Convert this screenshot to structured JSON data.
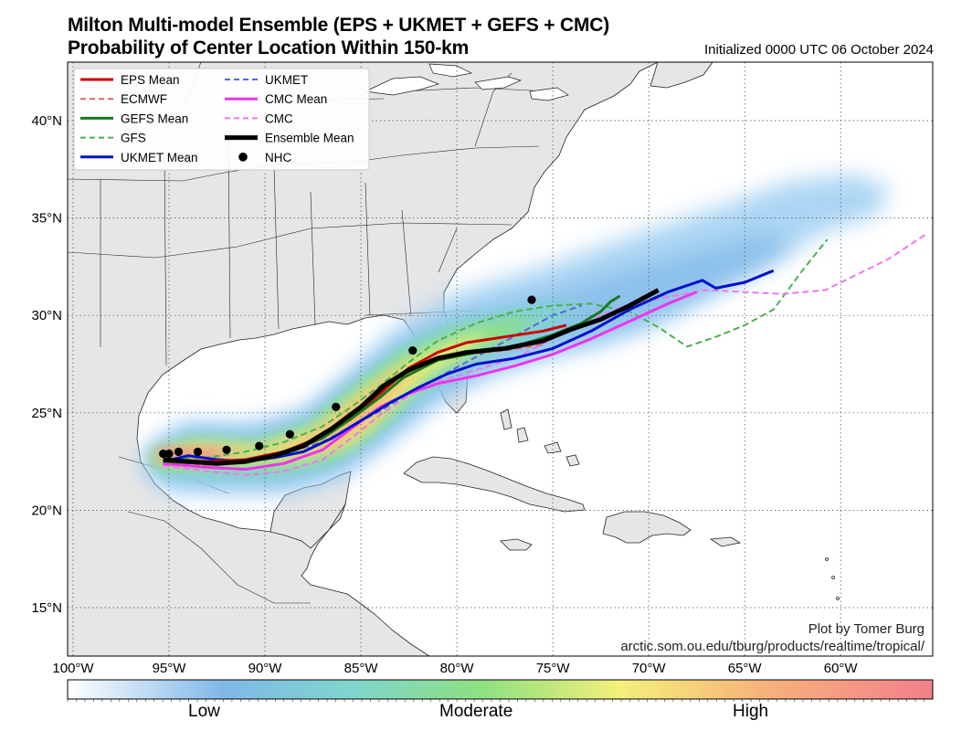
{
  "title_line1": "Milton Multi-model Ensemble (EPS + UKMET + GEFS + CMC)",
  "title_line2": "Probability of Center Location Within 150-km",
  "initialized": "Initialized 0000 UTC 06 October 2024",
  "credit_line1": "Plot by Tomer Burg",
  "credit_line2": "arctic.som.ou.edu/tburg/products/realtime/tropical/",
  "lat_ticks": [
    {
      "value": 40,
      "label": "40°N"
    },
    {
      "value": 35,
      "label": "35°N"
    },
    {
      "value": 30,
      "label": "30°N"
    },
    {
      "value": 25,
      "label": "25°N"
    },
    {
      "value": 20,
      "label": "20°N"
    },
    {
      "value": 15,
      "label": "15°N"
    }
  ],
  "lon_ticks": [
    {
      "value": -100,
      "label": "100°W"
    },
    {
      "value": -95,
      "label": "95°W"
    },
    {
      "value": -90,
      "label": "90°W"
    },
    {
      "value": -85,
      "label": "85°W"
    },
    {
      "value": -80,
      "label": "80°W"
    },
    {
      "value": -75,
      "label": "75°W"
    },
    {
      "value": -70,
      "label": "70°W"
    },
    {
      "value": -65,
      "label": "65°W"
    },
    {
      "value": -60,
      "label": "60°W"
    }
  ],
  "legend": [
    {
      "label": "EPS Mean",
      "color": "#cc0000",
      "style": "solid"
    },
    {
      "label": "ECMWF",
      "color": "#e06666",
      "style": "dashed"
    },
    {
      "label": "GEFS Mean",
      "color": "#1a7a1a",
      "style": "solid"
    },
    {
      "label": "GFS",
      "color": "#4caf50",
      "style": "dashed"
    },
    {
      "label": "UKMET Mean",
      "color": "#0010cc",
      "style": "solid"
    },
    {
      "label": "UKMET",
      "color": "#5a64e0",
      "style": "dashed"
    },
    {
      "label": "CMC Mean",
      "color": "#ee33ee",
      "style": "solid"
    },
    {
      "label": "CMC",
      "color": "#ee77ee",
      "style": "dashed"
    },
    {
      "label": "Ensemble Mean",
      "color": "#000000",
      "style": "solid"
    },
    {
      "label": "NHC",
      "color": "#000000",
      "style": "dot"
    }
  ],
  "colorbar": {
    "low": "Low",
    "moderate": "Moderate",
    "high": "High"
  },
  "tracks": {
    "ensemble_mean": [
      [
        -95.3,
        22.6
      ],
      [
        -94,
        22.5
      ],
      [
        -92.5,
        22.4
      ],
      [
        -91,
        22.5
      ],
      [
        -89.5,
        22.8
      ],
      [
        -88,
        23.3
      ],
      [
        -86.5,
        24.2
      ],
      [
        -85,
        25.3
      ],
      [
        -83.8,
        26.4
      ],
      [
        -82.5,
        27.2
      ],
      [
        -81,
        27.8
      ],
      [
        -79.5,
        28.1
      ],
      [
        -77.5,
        28.3
      ],
      [
        -75.5,
        28.7
      ],
      [
        -74,
        29.3
      ],
      [
        -72.5,
        29.8
      ],
      [
        -71,
        30.5
      ],
      [
        -69.5,
        31.3
      ]
    ],
    "eps_mean": [
      [
        -95.3,
        22.6
      ],
      [
        -93,
        22.5
      ],
      [
        -91,
        22.6
      ],
      [
        -89,
        23
      ],
      [
        -87,
        23.8
      ],
      [
        -85.5,
        24.8
      ],
      [
        -84,
        26
      ],
      [
        -82.5,
        27.3
      ],
      [
        -81,
        28.1
      ],
      [
        -79.5,
        28.6
      ],
      [
        -77.5,
        28.9
      ],
      [
        -75.5,
        29.2
      ],
      [
        -74.3,
        29.5
      ]
    ],
    "gefs_mean": [
      [
        -95.3,
        22.5
      ],
      [
        -93,
        22.4
      ],
      [
        -91,
        22.5
      ],
      [
        -89,
        22.9
      ],
      [
        -87,
        23.7
      ],
      [
        -85.5,
        24.7
      ],
      [
        -84,
        25.8
      ],
      [
        -82.8,
        26.8
      ],
      [
        -81,
        27.7
      ],
      [
        -79,
        28.1
      ],
      [
        -77,
        28.4
      ],
      [
        -75,
        29
      ],
      [
        -73.5,
        29.6
      ],
      [
        -72.5,
        30.2
      ],
      [
        -72,
        30.7
      ],
      [
        -71.5,
        31
      ]
    ],
    "ukmet_mean": [
      [
        -95.3,
        22.5
      ],
      [
        -94,
        22.8
      ],
      [
        -92.5,
        22.6
      ],
      [
        -91,
        22.5
      ],
      [
        -89.5,
        22.7
      ],
      [
        -88,
        23
      ],
      [
        -86.5,
        23.7
      ],
      [
        -85,
        24.6
      ],
      [
        -83.5,
        25.5
      ],
      [
        -82,
        26.3
      ],
      [
        -80.5,
        27
      ],
      [
        -79,
        27.5
      ],
      [
        -77,
        27.8
      ],
      [
        -75,
        28.3
      ],
      [
        -73,
        29.2
      ],
      [
        -71,
        30.3
      ],
      [
        -69,
        31.2
      ],
      [
        -67.2,
        31.8
      ],
      [
        -66.5,
        31.4
      ],
      [
        -65,
        31.7
      ],
      [
        -63.5,
        32.3
      ]
    ],
    "cmc_mean": [
      [
        -95.3,
        22.4
      ],
      [
        -93,
        22.2
      ],
      [
        -91,
        22.1
      ],
      [
        -89,
        22.4
      ],
      [
        -87,
        23.1
      ],
      [
        -85.5,
        24.2
      ],
      [
        -84,
        25.3
      ],
      [
        -82.5,
        26
      ],
      [
        -81,
        26.5
      ],
      [
        -79,
        26.9
      ],
      [
        -77,
        27.4
      ],
      [
        -75,
        28
      ],
      [
        -73,
        28.8
      ],
      [
        -71,
        29.7
      ],
      [
        -69,
        30.6
      ],
      [
        -67.5,
        31.2
      ]
    ],
    "ecmwf": [
      [
        -95.3,
        22.4
      ],
      [
        -93,
        22.3
      ],
      [
        -91,
        22.5
      ],
      [
        -89,
        22.9
      ],
      [
        -87,
        23.7
      ],
      [
        -85.5,
        24.7
      ],
      [
        -84,
        25.8
      ],
      [
        -82.5,
        27
      ],
      [
        -81,
        27.7
      ],
      [
        -79.5,
        28
      ],
      [
        -77.5,
        28.2
      ],
      [
        -75.5,
        28.5
      ]
    ],
    "gfs": [
      [
        -95.3,
        22.6
      ],
      [
        -93,
        22.7
      ],
      [
        -91,
        23
      ],
      [
        -89,
        23.5
      ],
      [
        -87,
        24.3
      ],
      [
        -85.5,
        25.3
      ],
      [
        -84,
        26.4
      ],
      [
        -82.5,
        27.6
      ],
      [
        -81,
        28.7
      ],
      [
        -79,
        29.6
      ],
      [
        -77,
        30.2
      ],
      [
        -75,
        30.5
      ],
      [
        -73,
        30.6
      ],
      [
        -71,
        30.2
      ],
      [
        -69.5,
        29.4
      ],
      [
        -68,
        28.4
      ],
      [
        -66.5,
        28.9
      ],
      [
        -65,
        29.5
      ],
      [
        -63.5,
        30.3
      ],
      [
        -62,
        32.3
      ],
      [
        -60.7,
        33.9
      ]
    ],
    "ukmet": [
      [
        -95.3,
        22.5
      ],
      [
        -93,
        22.5
      ],
      [
        -91,
        22.6
      ],
      [
        -89,
        22.9
      ],
      [
        -87,
        23.5
      ],
      [
        -85.5,
        24.3
      ],
      [
        -84,
        25.1
      ],
      [
        -82.5,
        26
      ],
      [
        -81,
        26.8
      ],
      [
        -79.5,
        27.6
      ],
      [
        -78,
        28.4
      ],
      [
        -76.5,
        29.2
      ],
      [
        -75,
        30
      ],
      [
        -73.5,
        30.5
      ]
    ],
    "cmc": [
      [
        -95.3,
        22.3
      ],
      [
        -93,
        22
      ],
      [
        -91,
        21.8
      ],
      [
        -89,
        22
      ],
      [
        -87,
        22.6
      ],
      [
        -85.5,
        23.7
      ],
      [
        -84,
        24.9
      ],
      [
        -82.5,
        25.9
      ],
      [
        -81,
        26.6
      ],
      [
        -79,
        27.2
      ],
      [
        -77,
        27.8
      ],
      [
        -75,
        28.8
      ],
      [
        -73,
        29.8
      ],
      [
        -71,
        30.6
      ],
      [
        -67,
        31.3
      ],
      [
        -63,
        31.1
      ],
      [
        -60.8,
        31.3
      ],
      [
        -57.5,
        32.9
      ],
      [
        -55.5,
        34.2
      ]
    ],
    "nhc": [
      [
        -95.3,
        22.9
      ],
      [
        -95,
        22.9
      ],
      [
        -94.5,
        23
      ],
      [
        -93.5,
        23
      ],
      [
        -92,
        23.1
      ],
      [
        -90.3,
        23.3
      ],
      [
        -88.7,
        23.9
      ],
      [
        -86.3,
        25.3
      ],
      [
        -82.3,
        28.2
      ],
      [
        -76.1,
        30.8
      ]
    ]
  }
}
